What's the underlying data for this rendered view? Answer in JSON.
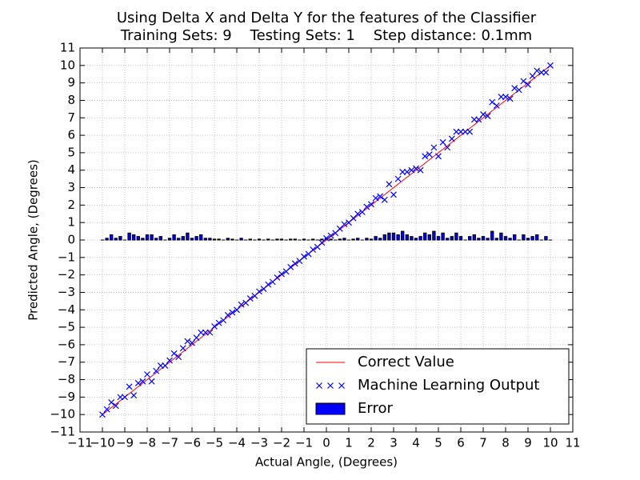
{
  "chart_data": {
    "type": "scatter",
    "title": "Using Delta X and Delta Y for the features of the Classifier",
    "subtitle": "Training Sets: 9    Testing Sets: 1    Step distance: 0.1mm",
    "x_label": "Actual Angle, (Degrees)",
    "y_label": "Predicted Angle, (Degrees)",
    "xlim": [
      -11,
      11
    ],
    "ylim": [
      -11,
      11
    ],
    "xticks": [
      {
        "value": -11,
        "label": "−11"
      },
      {
        "value": -10,
        "label": "−10"
      },
      {
        "value": -9,
        "label": "−9"
      },
      {
        "value": -8,
        "label": "−8"
      },
      {
        "value": -7,
        "label": "−7"
      },
      {
        "value": -6,
        "label": "−6"
      },
      {
        "value": -5,
        "label": "−5"
      },
      {
        "value": -4,
        "label": "−4"
      },
      {
        "value": -3,
        "label": "−3"
      },
      {
        "value": -2,
        "label": "−2"
      },
      {
        "value": -1,
        "label": "−1"
      },
      0,
      1,
      2,
      3,
      4,
      5,
      6,
      7,
      8,
      9,
      10,
      11
    ],
    "yticks": [
      {
        "value": -11,
        "label": "−11"
      },
      {
        "value": -10,
        "label": "−10"
      },
      {
        "value": -9,
        "label": "−9"
      },
      {
        "value": -8,
        "label": "−8"
      },
      {
        "value": -7,
        "label": "−7"
      },
      {
        "value": -6,
        "label": "−6"
      },
      {
        "value": -5,
        "label": "−5"
      },
      {
        "value": -4,
        "label": "−4"
      },
      {
        "value": -3,
        "label": "−3"
      },
      {
        "value": -2,
        "label": "−2"
      },
      {
        "value": -1,
        "label": "−1"
      },
      0,
      1,
      2,
      3,
      4,
      5,
      6,
      7,
      8,
      9,
      10,
      11
    ],
    "grid": true,
    "legend": "lower right",
    "series": [
      {
        "name": "Correct Value",
        "type": "line",
        "color": "#ff0000",
        "x": [
          -10,
          10
        ],
        "values": [
          -10,
          10
        ]
      },
      {
        "name": "Machine Learning Output",
        "type": "scatter",
        "color": "#0000ff",
        "x": [
          -10,
          -9.8,
          -9.6,
          -9.4,
          -9.2,
          -9,
          -8.8,
          -8.6,
          -8.4,
          -8.2,
          -8,
          -7.8,
          -7.6,
          -7.4,
          -7.2,
          -7,
          -6.8,
          -6.6,
          -6.4,
          -6.2,
          -6,
          -5.8,
          -5.6,
          -5.4,
          -5.2,
          -5,
          -4.8,
          -4.6,
          -4.4,
          -4.2,
          -4,
          -3.8,
          -3.6,
          -3.4,
          -3.2,
          -3,
          -2.8,
          -2.6,
          -2.4,
          -2.2,
          -2,
          -1.8,
          -1.6,
          -1.4,
          -1.2,
          -1,
          -0.8,
          -0.6,
          -0.4,
          -0.2,
          0,
          0.2,
          0.4,
          0.6,
          0.8,
          1,
          1.2,
          1.4,
          1.6,
          1.8,
          2,
          2.2,
          2.4,
          2.6,
          2.8,
          3,
          3.2,
          3.4,
          3.6,
          3.8,
          4,
          4.2,
          4.4,
          4.6,
          4.8,
          5,
          5.2,
          5.4,
          5.6,
          5.8,
          6,
          6.2,
          6.4,
          6.6,
          6.8,
          7,
          7.2,
          7.4,
          7.6,
          7.8,
          8,
          8.2,
          8.4,
          8.6,
          8.8,
          9,
          9.2,
          9.4,
          9.6,
          9.8,
          10
        ],
        "values": [
          -10,
          -9.7,
          -9.3,
          -9.5,
          -9,
          -9,
          -8.4,
          -8.9,
          -8.2,
          -8.1,
          -7.7,
          -8.1,
          -7.5,
          -7.2,
          -7.2,
          -6.9,
          -6.5,
          -6.7,
          -6.2,
          -5.8,
          -5.9,
          -5.6,
          -5.3,
          -5.3,
          -5.3,
          -4.95,
          -4.75,
          -4.6,
          -4.3,
          -4.15,
          -4,
          -3.7,
          -3.6,
          -3.35,
          -3.2,
          -2.95,
          -2.8,
          -2.55,
          -2.4,
          -2.15,
          -1.95,
          -1.8,
          -1.55,
          -1.35,
          -1.2,
          -0.95,
          -0.8,
          -0.55,
          -0.4,
          -0.15,
          0.1,
          0.25,
          0.4,
          0.65,
          0.9,
          1,
          1.25,
          1.5,
          1.6,
          1.9,
          2.05,
          2.4,
          2.5,
          2.3,
          3.2,
          2.6,
          3.5,
          3.9,
          3.9,
          4,
          4.1,
          4,
          4.8,
          4.9,
          5.3,
          4.8,
          5.6,
          5.3,
          5.8,
          6.2,
          6.2,
          6.2,
          6.2,
          6.9,
          6.9,
          7.2,
          7.1,
          7.9,
          7.7,
          8.2,
          8.2,
          8.1,
          8.7,
          8.6,
          9.1,
          8.9,
          9.4,
          9.7,
          9.6,
          9.6,
          10
        ]
      },
      {
        "name": "Error",
        "type": "bar",
        "color": "#0000ff",
        "x": [
          -10,
          -9.8,
          -9.6,
          -9.4,
          -9.2,
          -9,
          -8.8,
          -8.6,
          -8.4,
          -8.2,
          -8,
          -7.8,
          -7.6,
          -7.4,
          -7.2,
          -7,
          -6.8,
          -6.6,
          -6.4,
          -6.2,
          -6,
          -5.8,
          -5.6,
          -5.4,
          -5.2,
          -5,
          -4.8,
          -4.6,
          -4.4,
          -4.2,
          -4,
          -3.8,
          -3.6,
          -3.4,
          -3.2,
          -3,
          -2.8,
          -2.6,
          -2.4,
          -2.2,
          -2,
          -1.8,
          -1.6,
          -1.4,
          -1.2,
          -1,
          -0.8,
          -0.6,
          -0.4,
          -0.2,
          0,
          0.2,
          0.4,
          0.6,
          0.8,
          1,
          1.2,
          1.4,
          1.6,
          1.8,
          2,
          2.2,
          2.4,
          2.6,
          2.8,
          3,
          3.2,
          3.4,
          3.6,
          3.8,
          4,
          4.2,
          4.4,
          4.6,
          4.8,
          5,
          5.2,
          5.4,
          5.6,
          5.8,
          6,
          6.2,
          6.4,
          6.6,
          6.8,
          7,
          7.2,
          7.4,
          7.6,
          7.8,
          8,
          8.2,
          8.4,
          8.6,
          8.8,
          9,
          9.2,
          9.4,
          9.6,
          9.8,
          10
        ],
        "values": [
          0,
          0.1,
          0.3,
          0.1,
          0.2,
          0,
          0.4,
          0.3,
          0.2,
          0.1,
          0.3,
          0.3,
          0.1,
          0.2,
          0,
          0.1,
          0.3,
          0.1,
          0.2,
          0.4,
          0.1,
          0.2,
          0.3,
          0.1,
          0.1,
          0.05,
          0.05,
          0,
          0.1,
          0.05,
          0,
          0.1,
          0,
          0.05,
          0,
          0.05,
          0,
          0.05,
          0,
          0.05,
          0.05,
          0,
          0.05,
          0.05,
          0,
          0.05,
          0,
          0.05,
          0,
          0.05,
          0.1,
          0.05,
          0,
          0.05,
          0.1,
          0,
          0.05,
          0.1,
          0,
          0.1,
          0.05,
          0.2,
          0.1,
          0.3,
          0.4,
          0.4,
          0.3,
          0.5,
          0.3,
          0.2,
          0.1,
          0.2,
          0.4,
          0.3,
          0.5,
          0.2,
          0.4,
          0.1,
          0.2,
          0.4,
          0.2,
          0,
          0.2,
          0.3,
          0.1,
          0.2,
          0.1,
          0.5,
          0.1,
          0.4,
          0.2,
          0.1,
          0.3,
          0,
          0.3,
          0.1,
          0.2,
          0.3,
          0,
          0.2,
          0
        ]
      }
    ]
  }
}
